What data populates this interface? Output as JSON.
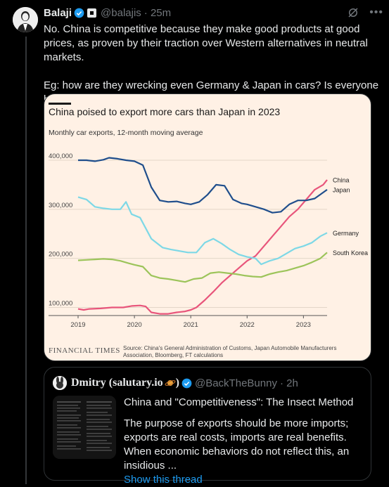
{
  "tweet": {
    "name": "Balaji",
    "handle": "@balajis",
    "time": "· 25m",
    "text": "No. China is competitive because they make good products at good prices, as proven by their traction over Western alternatives in neutral markets.\n\nEg: how are they wrecking even Germany & Japan in cars? Is everyone brainwashed? Or has China gotten good?"
  },
  "chart_data": {
    "type": "line",
    "title": "China poised to export more cars than Japan in 2023",
    "subtitle": "Monthly car exports, 12-month moving average",
    "y_ticks": [
      "400,000",
      "300,000",
      "200,000",
      "100,000"
    ],
    "x_ticks": [
      "2019",
      "2020",
      "2021",
      "2022",
      "2023"
    ],
    "ylim": [
      85000,
      420000
    ],
    "xlim": [
      2019.0,
      2023.42
    ],
    "series": [
      {
        "name": "China",
        "color": "#e8557b",
        "x": [
          2019.0,
          2019.1,
          2019.2,
          2019.4,
          2019.6,
          2019.8,
          2019.95,
          2020.1,
          2020.2,
          2020.3,
          2020.45,
          2020.6,
          2020.75,
          2020.9,
          2021.0,
          2021.1,
          2021.25,
          2021.4,
          2021.55,
          2021.7,
          2021.85,
          2022.0,
          2022.15,
          2022.3,
          2022.45,
          2022.6,
          2022.75,
          2022.9,
          2023.05,
          2023.2,
          2023.35,
          2023.42
        ],
        "values": [
          97000,
          95000,
          97000,
          98000,
          100000,
          100000,
          103000,
          104000,
          102000,
          90000,
          87000,
          87000,
          90000,
          92000,
          95000,
          100000,
          115000,
          132000,
          150000,
          165000,
          180000,
          195000,
          205000,
          225000,
          245000,
          265000,
          285000,
          300000,
          320000,
          340000,
          350000,
          360000
        ]
      },
      {
        "name": "Japan",
        "color": "#1f4e8c",
        "x": [
          2019.0,
          2019.15,
          2019.3,
          2019.45,
          2019.55,
          2019.7,
          2019.85,
          2020.0,
          2020.15,
          2020.3,
          2020.45,
          2020.6,
          2020.75,
          2020.9,
          2021.0,
          2021.15,
          2021.3,
          2021.45,
          2021.6,
          2021.75,
          2021.9,
          2022.0,
          2022.15,
          2022.3,
          2022.45,
          2022.6,
          2022.75,
          2022.9,
          2023.05,
          2023.2,
          2023.42
        ],
        "values": [
          400000,
          400000,
          398000,
          401000,
          405000,
          403000,
          400000,
          398000,
          390000,
          345000,
          318000,
          315000,
          316000,
          312000,
          310000,
          315000,
          330000,
          350000,
          348000,
          320000,
          312000,
          310000,
          305000,
          300000,
          293000,
          295000,
          310000,
          318000,
          318000,
          322000,
          340000
        ]
      },
      {
        "name": "Germany",
        "color": "#7dd8e6",
        "x": [
          2019.0,
          2019.15,
          2019.3,
          2019.45,
          2019.6,
          2019.75,
          2019.85,
          2019.95,
          2020.1,
          2020.3,
          2020.5,
          2020.65,
          2020.8,
          2020.95,
          2021.1,
          2021.25,
          2021.4,
          2021.55,
          2021.7,
          2021.85,
          2022.0,
          2022.15,
          2022.25,
          2022.4,
          2022.55,
          2022.7,
          2022.85,
          2023.0,
          2023.15,
          2023.3,
          2023.42
        ],
        "values": [
          325000,
          320000,
          305000,
          302000,
          300000,
          300000,
          315000,
          290000,
          283000,
          240000,
          222000,
          218000,
          215000,
          212000,
          212000,
          232000,
          240000,
          230000,
          218000,
          208000,
          203000,
          200000,
          188000,
          195000,
          200000,
          210000,
          220000,
          225000,
          232000,
          245000,
          252000
        ]
      },
      {
        "name": "South Korea",
        "color": "#9cc45a",
        "x": [
          2019.0,
          2019.15,
          2019.3,
          2019.45,
          2019.6,
          2019.75,
          2019.9,
          2020.0,
          2020.15,
          2020.3,
          2020.45,
          2020.6,
          2020.75,
          2020.9,
          2021.05,
          2021.2,
          2021.35,
          2021.5,
          2021.65,
          2021.8,
          2021.95,
          2022.1,
          2022.25,
          2022.4,
          2022.55,
          2022.7,
          2022.85,
          2023.0,
          2023.15,
          2023.3,
          2023.42
        ],
        "values": [
          196000,
          197000,
          198000,
          199000,
          198000,
          195000,
          190000,
          187000,
          183000,
          165000,
          160000,
          158000,
          155000,
          152000,
          158000,
          160000,
          170000,
          172000,
          170000,
          168000,
          165000,
          163000,
          162000,
          168000,
          172000,
          175000,
          180000,
          185000,
          192000,
          200000,
          212000
        ]
      }
    ],
    "source_brand": "FINANCIAL TIMES",
    "source_note_1": "Source: China's General Administration of Customs, Japan Automobile Manufacturers",
    "source_note_2": "Association, Bloomberg, FT calculations"
  },
  "quote": {
    "name": "Dmitry (salutary.io",
    "name_suffix": ")",
    "handle": "@BackTheBunny",
    "time": "· 2h",
    "title": "China and \"Competitiveness\": The Insect Method",
    "body": "The purpose of exports should be more imports; exports are real costs, imports are real benefits. When economic behaviors do not reflect this, an insidious ...",
    "link": "Show this thread"
  }
}
